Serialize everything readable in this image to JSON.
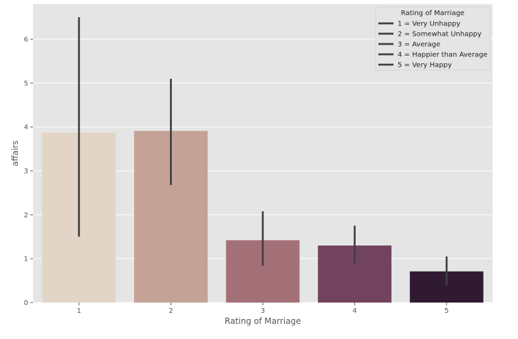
{
  "chart_data": {
    "type": "bar",
    "categories": [
      "1",
      "2",
      "3",
      "4",
      "5"
    ],
    "values": [
      3.87,
      3.91,
      1.42,
      1.3,
      0.71
    ],
    "ci_low": [
      1.5,
      2.68,
      0.84,
      0.9,
      0.4
    ],
    "ci_high": [
      6.5,
      5.1,
      2.08,
      1.75,
      1.05
    ],
    "colors": [
      "#e2d5c7",
      "#c5a296",
      "#a47078",
      "#72435f",
      "#2f1a31"
    ],
    "error_color": "#3f3f3f",
    "xlabel": "Rating of Marriage",
    "ylabel": "affairs",
    "ylim": [
      0,
      6.8
    ],
    "yticks": [
      0,
      1,
      2,
      3,
      4,
      5,
      6
    ],
    "grid": true,
    "background": "#e5e5e5",
    "grid_color": "#ffffff",
    "legend": {
      "title": "Rating of Marriage",
      "placement": "top-right",
      "entries": [
        "1 = Very Unhappy",
        "2 = Somewhat Unhappy",
        "3 = Average",
        "4 = Happier than Average",
        "5 = Very Happy"
      ]
    }
  }
}
